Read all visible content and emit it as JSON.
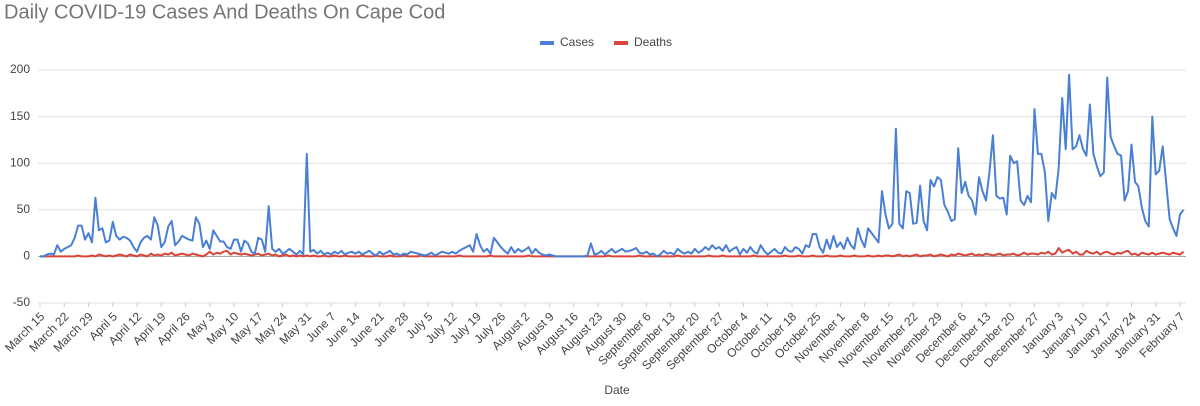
{
  "chart_data": {
    "type": "line",
    "title": "Daily COVID-19 Cases And Deaths On Cape Cod",
    "x_label": "Date",
    "legend": "top",
    "grid": true,
    "ylim": [
      -50,
      200
    ],
    "yticks": [
      -50,
      0,
      50,
      100,
      150,
      200
    ],
    "categories": [
      "March 15",
      null,
      null,
      null,
      null,
      null,
      null,
      "March 22",
      null,
      null,
      null,
      null,
      null,
      null,
      "March 29",
      null,
      null,
      null,
      null,
      null,
      null,
      "April 5",
      null,
      null,
      null,
      null,
      null,
      null,
      "April 12",
      null,
      null,
      null,
      null,
      null,
      null,
      "April 19",
      null,
      null,
      null,
      null,
      null,
      null,
      "April 26",
      null,
      null,
      null,
      null,
      null,
      null,
      "May 3",
      null,
      null,
      null,
      null,
      null,
      null,
      "May 10",
      null,
      null,
      null,
      null,
      null,
      null,
      "May 17",
      null,
      null,
      null,
      null,
      null,
      null,
      "May 24",
      null,
      null,
      null,
      null,
      null,
      null,
      "May 31",
      null,
      null,
      null,
      null,
      null,
      null,
      "June 7",
      null,
      null,
      null,
      null,
      null,
      null,
      "June 14",
      null,
      null,
      null,
      null,
      null,
      null,
      "June 21",
      null,
      null,
      null,
      null,
      null,
      null,
      "June 28",
      null,
      null,
      null,
      null,
      null,
      null,
      "July 5",
      null,
      null,
      null,
      null,
      null,
      null,
      "July 12",
      null,
      null,
      null,
      null,
      null,
      null,
      "July 19",
      null,
      null,
      null,
      null,
      null,
      null,
      "July 26",
      null,
      null,
      null,
      null,
      null,
      null,
      "August 2",
      null,
      null,
      null,
      null,
      null,
      null,
      "August 9",
      null,
      null,
      null,
      null,
      null,
      null,
      "August 16",
      null,
      null,
      null,
      null,
      null,
      null,
      "August 23",
      null,
      null,
      null,
      null,
      null,
      null,
      "August 30",
      null,
      null,
      null,
      null,
      null,
      null,
      "September 6",
      null,
      null,
      null,
      null,
      null,
      null,
      "September 13",
      null,
      null,
      null,
      null,
      null,
      null,
      "September 20",
      null,
      null,
      null,
      null,
      null,
      null,
      "September 27",
      null,
      null,
      null,
      null,
      null,
      null,
      "October 4",
      null,
      null,
      null,
      null,
      null,
      null,
      "October 11",
      null,
      null,
      null,
      null,
      null,
      null,
      "October 18",
      null,
      null,
      null,
      null,
      null,
      null,
      "October 25",
      null,
      null,
      null,
      null,
      null,
      null,
      "November 1",
      null,
      null,
      null,
      null,
      null,
      null,
      "November 8",
      null,
      null,
      null,
      null,
      null,
      null,
      "November 15",
      null,
      null,
      null,
      null,
      null,
      null,
      "November 22",
      null,
      null,
      null,
      null,
      null,
      null,
      "November 29",
      null,
      null,
      null,
      null,
      null,
      null,
      "December 6",
      null,
      null,
      null,
      null,
      null,
      null,
      "December 13",
      null,
      null,
      null,
      null,
      null,
      null,
      "December 20",
      null,
      null,
      null,
      null,
      null,
      null,
      "December 27",
      null,
      null,
      null,
      null,
      null,
      null,
      "January 3",
      null,
      null,
      null,
      null,
      null,
      null,
      "January 10",
      null,
      null,
      null,
      null,
      null,
      null,
      "January 17",
      null,
      null,
      null,
      null,
      null,
      null,
      "January 24",
      null,
      null,
      null,
      null,
      null,
      null,
      "January 31",
      null,
      null,
      null,
      null,
      null,
      null,
      "February 7",
      null
    ],
    "series": [
      {
        "name": "Cases",
        "color": "#4a7fd6",
        "values": [
          0,
          0,
          2,
          3,
          2,
          12,
          5,
          8,
          10,
          12,
          20,
          33,
          33,
          18,
          25,
          15,
          63,
          28,
          30,
          15,
          17,
          37,
          22,
          18,
          21,
          20,
          17,
          10,
          5,
          15,
          20,
          22,
          18,
          42,
          33,
          10,
          15,
          32,
          38,
          12,
          16,
          22,
          20,
          18,
          17,
          42,
          35,
          10,
          17,
          8,
          28,
          22,
          16,
          16,
          10,
          8,
          18,
          18,
          5,
          17,
          14,
          5,
          3,
          20,
          18,
          5,
          54,
          8,
          5,
          8,
          3,
          5,
          8,
          5,
          2,
          6,
          2,
          110,
          5,
          7,
          3,
          6,
          2,
          4,
          2,
          5,
          3,
          6,
          2,
          4,
          5,
          3,
          5,
          2,
          4,
          6,
          3,
          1,
          5,
          2,
          4,
          6,
          2,
          3,
          1,
          3,
          2,
          5,
          4,
          3,
          2,
          1,
          2,
          4,
          1,
          3,
          5,
          4,
          3,
          5,
          3,
          6,
          8,
          10,
          12,
          5,
          24,
          12,
          5,
          8,
          3,
          20,
          15,
          10,
          6,
          3,
          10,
          4,
          8,
          5,
          7,
          10,
          3,
          8,
          4,
          2,
          1,
          2,
          1,
          0,
          0,
          0,
          0,
          0,
          0,
          0,
          0,
          0,
          1,
          14,
          2,
          3,
          6,
          2,
          5,
          8,
          4,
          6,
          8,
          5,
          6,
          7,
          9,
          4,
          3,
          5,
          2,
          3,
          0,
          2,
          6,
          3,
          4,
          2,
          8,
          5,
          3,
          5,
          3,
          8,
          4,
          6,
          10,
          7,
          12,
          8,
          10,
          6,
          12,
          5,
          8,
          10,
          2,
          8,
          4,
          10,
          5,
          3,
          12,
          6,
          2,
          5,
          8,
          4,
          3,
          10,
          6,
          5,
          10,
          8,
          3,
          12,
          10,
          24,
          24,
          10,
          4,
          18,
          8,
          22,
          10,
          15,
          8,
          20,
          12,
          8,
          30,
          18,
          10,
          30,
          25,
          20,
          15,
          70,
          45,
          30,
          35,
          137,
          35,
          30,
          70,
          68,
          35,
          36,
          76,
          38,
          28,
          82,
          75,
          85,
          82,
          55,
          48,
          38,
          40,
          116,
          68,
          80,
          65,
          60,
          45,
          85,
          70,
          60,
          90,
          130,
          65,
          62,
          63,
          45,
          108,
          100,
          102,
          60,
          55,
          65,
          58,
          158,
          110,
          110,
          90,
          38,
          68,
          62,
          95,
          170,
          115,
          195,
          115,
          118,
          130,
          115,
          108,
          163,
          110,
          97,
          86,
          90,
          192,
          128,
          118,
          110,
          108,
          60,
          70,
          120,
          80,
          75,
          52,
          38,
          32,
          150,
          88,
          92,
          118,
          80,
          40,
          30,
          22,
          45,
          50
        ]
      },
      {
        "name": "Deaths",
        "color": "#d9453a",
        "values": [
          0,
          0,
          0,
          0,
          0,
          0,
          0,
          0,
          0,
          0,
          0,
          1,
          0,
          0,
          0,
          1,
          0,
          2,
          1,
          0,
          1,
          0,
          1,
          2,
          1,
          0,
          2,
          1,
          0,
          2,
          1,
          0,
          3,
          1,
          2,
          1,
          3,
          2,
          4,
          1,
          2,
          3,
          2,
          1,
          3,
          2,
          1,
          0,
          2,
          5,
          2,
          4,
          3,
          5,
          6,
          2,
          4,
          3,
          2,
          3,
          2,
          1,
          2,
          3,
          1,
          2,
          3,
          1,
          2,
          0,
          1,
          2,
          0,
          1,
          0,
          1,
          0,
          1,
          0,
          1,
          0,
          0,
          1,
          0,
          0,
          1,
          0,
          0,
          1,
          0,
          0,
          0,
          0,
          1,
          0,
          0,
          0,
          1,
          0,
          0,
          0,
          1,
          0,
          0,
          0,
          1,
          0,
          0,
          0,
          0,
          1,
          0,
          0,
          0,
          0,
          0,
          0,
          0,
          0,
          0,
          0,
          1,
          0,
          0,
          0,
          0,
          0,
          0,
          0,
          0,
          1,
          0,
          0,
          0,
          0,
          0,
          0,
          0,
          0,
          0,
          0,
          1,
          0,
          0,
          0,
          0,
          0,
          0,
          0,
          0,
          0,
          0,
          0,
          0,
          0,
          0,
          0,
          0,
          0,
          0,
          0,
          0,
          0,
          0,
          1,
          0,
          0,
          0,
          0,
          0,
          0,
          0,
          0,
          1,
          0,
          0,
          0,
          0,
          0,
          0,
          0,
          0,
          0,
          0,
          1,
          0,
          0,
          0,
          0,
          0,
          0,
          0,
          0,
          1,
          0,
          0,
          0,
          1,
          0,
          0,
          0,
          0,
          0,
          0,
          0,
          0,
          1,
          0,
          0,
          0,
          0,
          0,
          0,
          0,
          0,
          1,
          0,
          0,
          0,
          1,
          0,
          0,
          0,
          1,
          0,
          0,
          0,
          1,
          0,
          0,
          0,
          1,
          0,
          0,
          0,
          1,
          0,
          0,
          0,
          1,
          0,
          0,
          1,
          0,
          1,
          1,
          0,
          1,
          2,
          0,
          1,
          0,
          1,
          2,
          0,
          1,
          1,
          2,
          0,
          1,
          2,
          1,
          0,
          2,
          1,
          3,
          2,
          1,
          2,
          3,
          1,
          2,
          1,
          3,
          2,
          1,
          2,
          3,
          1,
          2,
          2,
          3,
          1,
          2,
          4,
          2,
          3,
          3,
          2,
          4,
          3,
          5,
          2,
          3,
          9,
          4,
          6,
          7,
          3,
          5,
          2,
          2,
          6,
          4,
          3,
          5,
          2,
          4,
          5,
          3,
          2,
          4,
          3,
          5,
          6,
          2,
          3,
          1,
          4,
          3,
          2,
          4,
          2,
          3,
          4,
          3,
          2,
          4,
          3,
          2,
          5
        ]
      }
    ]
  }
}
